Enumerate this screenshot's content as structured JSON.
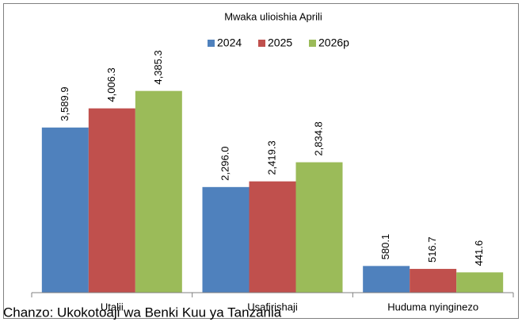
{
  "chart_data": {
    "type": "bar",
    "title": "Mwaka ulioishia Aprili",
    "categories": [
      "Utalii",
      "Usafirishaji",
      "Huduma nyinginezo"
    ],
    "series": [
      {
        "name": "2024",
        "color": "#4f81bd",
        "values": [
          3589.9,
          2296.0,
          580.1
        ],
        "value_labels": [
          "3,589.9",
          "2,296.0",
          "580.1"
        ]
      },
      {
        "name": "2025",
        "color": "#c0504d",
        "values": [
          4006.3,
          2419.3,
          516.7
        ],
        "value_labels": [
          "4,006.3",
          "2,419.3",
          "516.7"
        ]
      },
      {
        "name": "2026p",
        "color": "#9bbb59",
        "values": [
          4385.3,
          2834.8,
          441.6
        ],
        "value_labels": [
          "4,385.3",
          "2,834.8",
          "441.6"
        ]
      }
    ],
    "ylim": [
      0,
      5000
    ],
    "source": "Chanzo: Ukokotoaji wa Benki Kuu ya Tanzania"
  }
}
